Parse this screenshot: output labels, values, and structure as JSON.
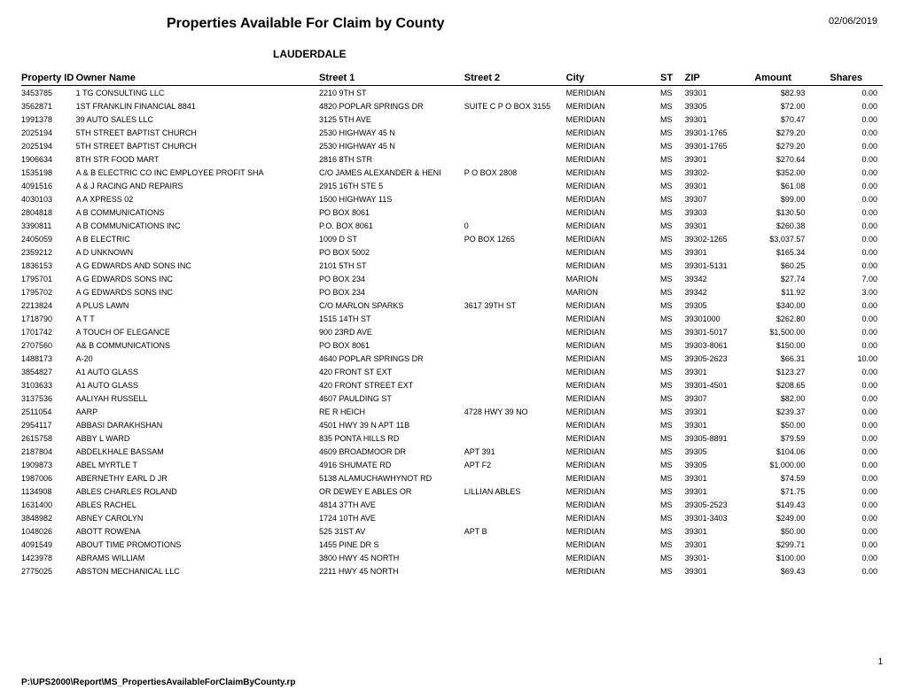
{
  "report": {
    "title": "Properties Available For Claim by County",
    "date": "02/06/2019",
    "county": "LAUDERDALE",
    "page_number": "1",
    "file_path": "P:\\UPS2000\\Report\\MS_PropertiesAvailableForClaimByCounty.rp"
  },
  "columns": {
    "property_id": "Property ID",
    "owner_name": "Owner Name",
    "street1": "Street 1",
    "street2": "Street 2",
    "city": "City",
    "st": "ST",
    "zip": "ZIP",
    "amount": "Amount",
    "shares": "Shares"
  },
  "rows": [
    {
      "property_id": "3453785",
      "owner_name": "1 TG CONSULTING LLC",
      "street1": "2210 9TH ST",
      "street2": "",
      "city": "MERIDIAN",
      "st": "MS",
      "zip": "39301",
      "amount": "$82.93",
      "shares": "0.00"
    },
    {
      "property_id": "3562871",
      "owner_name": "1ST FRANKLIN FINANCIAL 8841",
      "street1": "4820 POPLAR SPRINGS DR",
      "street2": "SUITE C P O BOX 3155",
      "city": "MERIDIAN",
      "st": "MS",
      "zip": "39305",
      "amount": "$72.00",
      "shares": "0.00"
    },
    {
      "property_id": "1991378",
      "owner_name": "39 AUTO SALES LLC",
      "street1": "3125 5TH AVE",
      "street2": "",
      "city": "MERIDIAN",
      "st": "MS",
      "zip": "39301",
      "amount": "$70.47",
      "shares": "0.00"
    },
    {
      "property_id": "2025194",
      "owner_name": "5TH STREET BAPTIST CHURCH",
      "street1": "2530 HIGHWAY 45 N",
      "street2": "",
      "city": "MERIDIAN",
      "st": "MS",
      "zip": "39301-1765",
      "amount": "$279.20",
      "shares": "0.00"
    },
    {
      "property_id": "2025194",
      "owner_name": "5TH STREET BAPTIST CHURCH",
      "street1": "2530 HIGHWAY 45 N",
      "street2": "",
      "city": "MERIDIAN",
      "st": "MS",
      "zip": "39301-1765",
      "amount": "$279.20",
      "shares": "0.00"
    },
    {
      "property_id": "1906634",
      "owner_name": "8TH STR FOOD MART",
      "street1": "2816 8TH STR",
      "street2": "",
      "city": "MERIDIAN",
      "st": "MS",
      "zip": "39301",
      "amount": "$270.64",
      "shares": "0.00"
    },
    {
      "property_id": "1535198",
      "owner_name": "A & B ELECTRIC CO INC EMPLOYEE PROFIT SHA",
      "street1": "C/O JAMES ALEXANDER & HENI",
      "street2": "P O BOX 2808",
      "city": "MERIDIAN",
      "st": "MS",
      "zip": "39302-",
      "amount": "$352.00",
      "shares": "0.00"
    },
    {
      "property_id": "4091516",
      "owner_name": "A & J RACING AND REPAIRS",
      "street1": "2915 16TH STE 5",
      "street2": "",
      "city": "MERIDIAN",
      "st": "MS",
      "zip": "39301",
      "amount": "$61.08",
      "shares": "0.00"
    },
    {
      "property_id": "4030103",
      "owner_name": "A A XPRESS 02",
      "street1": "1500 HIGHWAY 11S",
      "street2": "",
      "city": "MERIDIAN",
      "st": "MS",
      "zip": "39307",
      "amount": "$99.00",
      "shares": "0.00"
    },
    {
      "property_id": "2804818",
      "owner_name": "A B COMMUNICATIONS",
      "street1": "PO BOX 8061",
      "street2": "",
      "city": "MERIDIAN",
      "st": "MS",
      "zip": "39303",
      "amount": "$130.50",
      "shares": "0.00"
    },
    {
      "property_id": "3390811",
      "owner_name": "A B COMMUNICATIONS INC",
      "street1": "P.O. BOX 8061",
      "street2": "0",
      "city": "MERIDIAN",
      "st": "MS",
      "zip": "39301",
      "amount": "$260.38",
      "shares": "0.00"
    },
    {
      "property_id": "2405059",
      "owner_name": "A B ELECTRIC",
      "street1": "1009 D ST",
      "street2": "PO BOX 1265",
      "city": "MERIDIAN",
      "st": "MS",
      "zip": "39302-1265",
      "amount": "$3,037.57",
      "shares": "0.00"
    },
    {
      "property_id": "2359212",
      "owner_name": "A D UNKNOWN",
      "street1": "PO BOX 5002",
      "street2": "",
      "city": "MERIDIAN",
      "st": "MS",
      "zip": "39301",
      "amount": "$165.34",
      "shares": "0.00"
    },
    {
      "property_id": "1836153",
      "owner_name": "A G EDWARDS AND SONS INC",
      "street1": "2101 5TH ST",
      "street2": "",
      "city": "MERIDIAN",
      "st": "MS",
      "zip": "39301-5131",
      "amount": "$60.25",
      "shares": "0.00"
    },
    {
      "property_id": "1795701",
      "owner_name": "A G EDWARDS SONS INC",
      "street1": "PO BOX 234",
      "street2": "",
      "city": "MARION",
      "st": "MS",
      "zip": "39342",
      "amount": "$27.74",
      "shares": "7.00"
    },
    {
      "property_id": "1795702",
      "owner_name": "A G EDWARDS SONS INC",
      "street1": "PO BOX 234",
      "street2": "",
      "city": "MARION",
      "st": "MS",
      "zip": "39342",
      "amount": "$11.92",
      "shares": "3.00"
    },
    {
      "property_id": "2213824",
      "owner_name": "A PLUS LAWN",
      "street1": "C/O MARLON SPARKS",
      "street2": "3617 39TH ST",
      "city": "MERIDIAN",
      "st": "MS",
      "zip": "39305",
      "amount": "$340.00",
      "shares": "0.00"
    },
    {
      "property_id": "1718790",
      "owner_name": "A T T",
      "street1": "1515 14TH ST",
      "street2": "",
      "city": "MERIDIAN",
      "st": "MS",
      "zip": "39301000",
      "amount": "$262.80",
      "shares": "0.00"
    },
    {
      "property_id": "1701742",
      "owner_name": "A TOUCH OF ELEGANCE",
      "street1": "900 23RD AVE",
      "street2": "",
      "city": "MERIDIAN",
      "st": "MS",
      "zip": "39301-5017",
      "amount": "$1,500.00",
      "shares": "0.00"
    },
    {
      "property_id": "2707560",
      "owner_name": "A& B COMMUNICATIONS",
      "street1": "PO BOX 8061",
      "street2": "",
      "city": "MERIDIAN",
      "st": "MS",
      "zip": "39303-8061",
      "amount": "$150.00",
      "shares": "0.00"
    },
    {
      "property_id": "1488173",
      "owner_name": "A-20",
      "street1": "4640 POPLAR SPRINGS DR",
      "street2": "",
      "city": "MERIDIAN",
      "st": "MS",
      "zip": "39305-2623",
      "amount": "$66.31",
      "shares": "10.00"
    },
    {
      "property_id": "3854827",
      "owner_name": "A1 AUTO GLASS",
      "street1": "420 FRONT ST EXT",
      "street2": "",
      "city": "MERIDIAN",
      "st": "MS",
      "zip": "39301",
      "amount": "$123.27",
      "shares": "0.00"
    },
    {
      "property_id": "3103633",
      "owner_name": "A1 AUTO GLASS",
      "street1": "420 FRONT STREET EXT",
      "street2": "",
      "city": "MERIDIAN",
      "st": "MS",
      "zip": "39301-4501",
      "amount": "$208.65",
      "shares": "0.00"
    },
    {
      "property_id": "3137536",
      "owner_name": "AALIYAH RUSSELL",
      "street1": "4607 PAULDING ST",
      "street2": "",
      "city": "MERIDIAN",
      "st": "MS",
      "zip": "39307",
      "amount": "$82.00",
      "shares": "0.00"
    },
    {
      "property_id": "2511054",
      "owner_name": "AARP",
      "street1": "RE R HEICH",
      "street2": "4728 HWY 39 NO",
      "city": "MERIDIAN",
      "st": "MS",
      "zip": "39301",
      "amount": "$239.37",
      "shares": "0.00"
    },
    {
      "property_id": "2954117",
      "owner_name": "ABBASI DARAKHSHAN",
      "street1": "4501 HWY 39 N APT 11B",
      "street2": "",
      "city": "MERIDIAN",
      "st": "MS",
      "zip": "39301",
      "amount": "$50.00",
      "shares": "0.00"
    },
    {
      "property_id": "2615758",
      "owner_name": "ABBY L WARD",
      "street1": "835 PONTA HILLS RD",
      "street2": "",
      "city": "MERIDIAN",
      "st": "MS",
      "zip": "39305-8891",
      "amount": "$79.59",
      "shares": "0.00"
    },
    {
      "property_id": "2187804",
      "owner_name": "ABDELKHALE BASSAM",
      "street1": "4609 BROADMOOR DR",
      "street2": "APT 391",
      "city": "MERIDIAN",
      "st": "MS",
      "zip": "39305",
      "amount": "$104.06",
      "shares": "0.00"
    },
    {
      "property_id": "1909873",
      "owner_name": "ABEL MYRTLE T",
      "street1": "4916 SHUMATE RD",
      "street2": "APT F2",
      "city": "MERIDIAN",
      "st": "MS",
      "zip": "39305",
      "amount": "$1,000.00",
      "shares": "0.00"
    },
    {
      "property_id": "1987006",
      "owner_name": "ABERNETHY EARL D JR",
      "street1": "5138 ALAMUCHAWHYNOT RD",
      "street2": "",
      "city": "MERIDIAN",
      "st": "MS",
      "zip": "39301",
      "amount": "$74.59",
      "shares": "0.00"
    },
    {
      "property_id": "1134908",
      "owner_name": "ABLES CHARLES ROLAND",
      "street1": "OR DEWEY E ABLES OR",
      "street2": "LILLIAN ABLES",
      "city": "MERIDIAN",
      "st": "MS",
      "zip": "39301",
      "amount": "$71.75",
      "shares": "0.00"
    },
    {
      "property_id": "1631400",
      "owner_name": "ABLES RACHEL",
      "street1": "4814 37TH AVE",
      "street2": "",
      "city": "MERIDIAN",
      "st": "MS",
      "zip": "39305-2523",
      "amount": "$149.43",
      "shares": "0.00"
    },
    {
      "property_id": "3848982",
      "owner_name": "ABNEY CAROLYN",
      "street1": "1724 10TH AVE",
      "street2": "",
      "city": "MERIDIAN",
      "st": "MS",
      "zip": "39301-3403",
      "amount": "$249.00",
      "shares": "0.00"
    },
    {
      "property_id": "1048026",
      "owner_name": "ABOTT ROWENA",
      "street1": "525 31ST AV",
      "street2": "APT B",
      "city": "MERIDIAN",
      "st": "MS",
      "zip": "39301",
      "amount": "$50.00",
      "shares": "0.00"
    },
    {
      "property_id": "4091549",
      "owner_name": "ABOUT TIME PROMOTIONS",
      "street1": "1455 PINE DR S",
      "street2": "",
      "city": "MERIDIAN",
      "st": "MS",
      "zip": "39301",
      "amount": "$299.71",
      "shares": "0.00"
    },
    {
      "property_id": "1423978",
      "owner_name": "ABRAMS WILLIAM",
      "street1": "3800 HWY 45 NORTH",
      "street2": "",
      "city": "MERIDIAN",
      "st": "MS",
      "zip": "39301-",
      "amount": "$100.00",
      "shares": "0.00"
    },
    {
      "property_id": "2775025",
      "owner_name": "ABSTON MECHANICAL LLC",
      "street1": "2211 HWY 45 NORTH",
      "street2": "",
      "city": "MERIDIAN",
      "st": "MS",
      "zip": "39301",
      "amount": "$69.43",
      "shares": "0.00"
    }
  ]
}
